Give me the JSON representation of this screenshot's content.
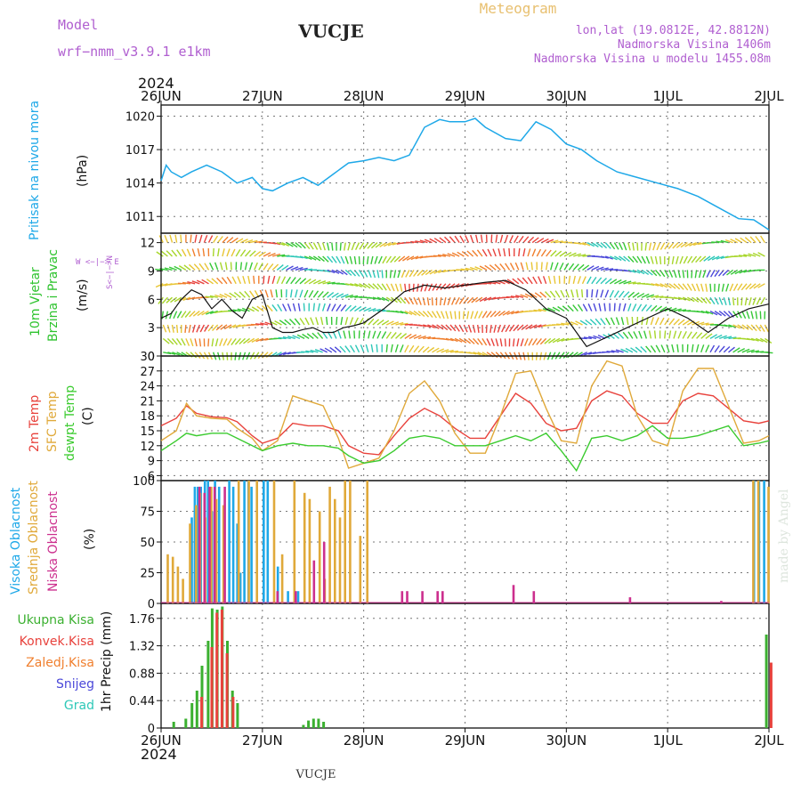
{
  "header": {
    "model_label": "Model",
    "model_name": "wrf−nmm_v3.9.1  e1km",
    "station": "VUCJE",
    "title": "Meteogram",
    "coords": "lon,lat (19.0812E, 42.8812N)",
    "elevation": "Nadmorska Visina 1406m",
    "model_elevation": "Nadmorska Visina u modelu 1455.08m",
    "footer_station": "VUCJE",
    "watermark": "made by Angel"
  },
  "time_axis": {
    "year": "2024",
    "ticks": [
      "26JUN",
      "27JUN",
      "28JUN",
      "29JUN",
      "30JUN",
      "1JUL",
      "2JUL"
    ]
  },
  "colors": {
    "pressure": "#1ea8e8",
    "wind_axis": "#2ec32e",
    "temp2m": "#e8423c",
    "sfc": "#e0a93a",
    "dew": "#3bcb2f",
    "cloud_high": "#1ea8e8",
    "cloud_mid": "#e0a93a",
    "cloud_low": "#cc2f8e",
    "precip_total": "#3bb030",
    "precip_conv": "#e8423c",
    "precip_frozen": "#f07f2e",
    "snow": "#4b48d9",
    "graupel": "#2ec8b8",
    "violet_text": "#b05fd0",
    "gold_text": "#e8c070"
  },
  "panel_labels": {
    "pressure": {
      "title": "Pritisak na nivou mora",
      "unit": "(hPa)"
    },
    "wind": {
      "title1": "10m Vjetar",
      "title2": "Brzina i Pravac",
      "unit": "(m/s)",
      "compass": "W <−|−> E",
      "compass_ns": "S<−|−>N"
    },
    "temp": {
      "t1": "2m Temp",
      "t2": "SFC Temp",
      "t3": "dewpt Temp",
      "unit": "(C)"
    },
    "cloud": {
      "c1": "Visoka Oblacnost",
      "c2": "Srednja Oblacnost",
      "c3": "Niska Oblacnost",
      "unit": "(%)"
    },
    "precip": {
      "p1": "Ukupna Kisa",
      "p2": "Konvek.Kisa",
      "p3": "Zaledj.Kisa",
      "p4": "Snijeg",
      "p5": "Grad",
      "unit": "1hr Precip (mm)"
    }
  },
  "chart_data": [
    {
      "type": "line",
      "panel": "pressure",
      "x_days": [
        0,
        0.05,
        0.1,
        0.2,
        0.3,
        0.45,
        0.6,
        0.75,
        0.9,
        1.0,
        1.1,
        1.25,
        1.4,
        1.55,
        1.7,
        1.85,
        2.0,
        2.15,
        2.3,
        2.45,
        2.6,
        2.75,
        2.85,
        3.0,
        3.1,
        3.2,
        3.4,
        3.55,
        3.7,
        3.85,
        4.0,
        4.15,
        4.3,
        4.5,
        4.7,
        4.9,
        5.1,
        5.3,
        5.5,
        5.7,
        5.85,
        6.0
      ],
      "values": [
        1014.2,
        1015.6,
        1015.0,
        1014.5,
        1015.0,
        1015.6,
        1015.0,
        1014.0,
        1014.5,
        1013.5,
        1013.3,
        1014.0,
        1014.5,
        1013.8,
        1014.8,
        1015.8,
        1016.0,
        1016.3,
        1016.0,
        1016.5,
        1019.0,
        1019.7,
        1019.5,
        1019.5,
        1019.8,
        1019.0,
        1018.0,
        1017.8,
        1019.5,
        1018.8,
        1017.5,
        1017.0,
        1016.0,
        1015.0,
        1014.5,
        1014.0,
        1013.5,
        1012.8,
        1011.8,
        1010.8,
        1010.7,
        1009.8
      ],
      "ylim": [
        1009.5,
        1021
      ],
      "yticks": [
        1011,
        1014,
        1017,
        1020
      ]
    },
    {
      "type": "line",
      "panel": "wind",
      "x_days": [
        0,
        0.1,
        0.2,
        0.3,
        0.4,
        0.5,
        0.6,
        0.7,
        0.8,
        0.9,
        1.0,
        1.1,
        1.2,
        1.3,
        1.4,
        1.5,
        1.6,
        1.7,
        1.8,
        1.9,
        2.0,
        2.2,
        2.4,
        2.6,
        2.8,
        3.0,
        3.2,
        3.4,
        3.6,
        3.8,
        4.0,
        4.2,
        4.4,
        4.6,
        4.8,
        5.0,
        5.2,
        5.4,
        5.6,
        5.8,
        6.0
      ],
      "values": [
        4,
        4.5,
        6,
        7,
        6.5,
        5,
        6,
        4.8,
        4,
        6,
        6.5,
        3,
        2.5,
        2.5,
        2.8,
        3,
        2.5,
        2.5,
        3,
        3.2,
        3.5,
        5,
        6.8,
        7.5,
        7.2,
        7.5,
        7.8,
        8,
        7,
        5,
        4,
        1,
        2,
        3,
        4,
        5,
        4,
        2.5,
        4,
        5,
        5.5
      ],
      "ylim": [
        0,
        13
      ],
      "yticks": [
        0,
        3,
        6,
        9,
        12
      ]
    },
    {
      "type": "line",
      "panel": "temperature",
      "x_days": [
        0,
        0.15,
        0.25,
        0.35,
        0.5,
        0.65,
        0.75,
        0.9,
        1.0,
        1.15,
        1.3,
        1.45,
        1.6,
        1.75,
        1.85,
        2.0,
        2.15,
        2.3,
        2.45,
        2.6,
        2.75,
        2.9,
        3.05,
        3.2,
        3.35,
        3.5,
        3.65,
        3.8,
        3.95,
        4.1,
        4.25,
        4.4,
        4.55,
        4.7,
        4.85,
        5.0,
        5.15,
        5.3,
        5.45,
        5.6,
        5.75,
        5.9,
        6.0
      ],
      "series": [
        {
          "name": "2m Temp",
          "values": [
            16,
            17.5,
            20,
            18.5,
            17.8,
            17.6,
            16.8,
            14,
            12.5,
            13.5,
            16.5,
            16,
            16,
            15,
            12,
            10.5,
            10.2,
            14,
            17.5,
            19.5,
            18,
            15.5,
            13.5,
            13.5,
            18,
            22.5,
            20.5,
            16.5,
            15,
            15.5,
            21,
            23,
            22,
            18.5,
            16.5,
            16.5,
            21,
            22.5,
            22,
            19.5,
            17,
            16.5,
            17
          ]
        },
        {
          "name": "SFC Temp",
          "values": [
            13,
            15,
            20.5,
            18,
            17.5,
            17.3,
            15.5,
            13.5,
            11,
            13,
            22,
            21,
            20,
            13.5,
            7.5,
            8.5,
            9.5,
            15,
            22.5,
            25,
            21,
            14.5,
            10.5,
            10.5,
            18,
            26.5,
            27,
            19.5,
            13,
            12.5,
            24,
            29,
            28,
            18,
            13,
            12,
            23,
            27.5,
            27.5,
            20,
            12.5,
            13,
            14
          ]
        },
        {
          "name": "dewpt Temp",
          "values": [
            11,
            13,
            14.5,
            14,
            14.5,
            14.5,
            13.5,
            12,
            11,
            12,
            12.5,
            12,
            12,
            11.5,
            10,
            8.5,
            9,
            11,
            13.5,
            14,
            13.5,
            12,
            12,
            12,
            13,
            14,
            13,
            14.5,
            11,
            7,
            13.5,
            14,
            13,
            14,
            16,
            13.5,
            13.5,
            14,
            15,
            16,
            12,
            12.5,
            13
          ]
        }
      ],
      "ylim": [
        5,
        30
      ],
      "yticks": [
        6,
        9,
        12,
        15,
        18,
        21,
        24,
        27,
        30
      ]
    },
    {
      "type": "bar",
      "panel": "cloud",
      "series": [
        {
          "name": "Visoka Oblacnost",
          "x_days": [
            0.3,
            0.33,
            0.36,
            0.39,
            0.43,
            0.46,
            0.5,
            0.53,
            0.57,
            0.67,
            0.71,
            0.75,
            0.78,
            0.82,
            0.86,
            0.89,
            1.01,
            1.05,
            1.15,
            1.25,
            1.35,
            5.85,
            5.9,
            5.95
          ],
          "values": [
            70,
            95,
            95,
            95,
            100,
            100,
            75,
            100,
            95,
            100,
            95,
            65,
            25,
            100,
            100,
            95,
            100,
            100,
            30,
            10,
            10,
            100,
            100,
            100
          ]
        },
        {
          "name": "Srednja Oblacnost",
          "x_days": [
            0.05,
            0.1,
            0.15,
            0.2,
            0.27,
            0.33,
            0.37,
            0.42,
            0.48,
            0.53,
            0.6,
            0.75,
            0.85,
            0.93,
            1.1,
            1.18,
            1.3,
            1.4,
            1.45,
            1.55,
            1.6,
            1.65,
            1.7,
            1.75,
            1.8,
            1.85,
            1.95,
            2.02,
            5.83,
            5.88,
            5.98
          ],
          "values": [
            40,
            38,
            30,
            20,
            65,
            80,
            90,
            70,
            95,
            85,
            80,
            100,
            100,
            100,
            100,
            40,
            100,
            90,
            85,
            75,
            20,
            95,
            85,
            70,
            100,
            100,
            55,
            100,
            100,
            100,
            95
          ]
        },
        {
          "name": "Niska Oblacnost",
          "x_days": [
            0.35,
            0.4,
            0.45,
            0.5,
            0.6,
            1.12,
            1.3,
            1.48,
            1.58,
            2.35,
            2.4,
            2.55,
            2.7,
            2.75,
            3.45,
            3.65,
            4.6,
            5.5
          ],
          "values": [
            95,
            90,
            95,
            95,
            95,
            10,
            10,
            35,
            50,
            10,
            10,
            10,
            10,
            10,
            15,
            10,
            5,
            2
          ]
        }
      ],
      "ylim": [
        0,
        100
      ],
      "yticks": [
        0,
        25,
        50,
        75,
        100
      ]
    },
    {
      "type": "bar",
      "panel": "precip",
      "series": [
        {
          "name": "Ukupna Kisa",
          "x_days": [
            0.12,
            0.24,
            0.3,
            0.35,
            0.4,
            0.46,
            0.5,
            0.55,
            0.6,
            0.65,
            0.7,
            0.75,
            1.4,
            1.45,
            1.5,
            1.55,
            1.6,
            5.97
          ],
          "values": [
            0.1,
            0.15,
            0.4,
            0.6,
            1.0,
            1.4,
            1.92,
            1.9,
            1.95,
            1.4,
            0.6,
            0.4,
            0.05,
            0.12,
            0.15,
            0.15,
            0.1,
            1.5
          ]
        },
        {
          "name": "Konvek.Kisa",
          "x_days": [
            0.37,
            0.47,
            0.52,
            0.57,
            0.62,
            0.68,
            5.99
          ],
          "values": [
            0.5,
            1.3,
            1.85,
            1.9,
            1.2,
            0.5,
            1.05
          ]
        }
      ],
      "ylim": [
        0,
        2.0
      ],
      "yticks": [
        0,
        0.44,
        0.88,
        1.32,
        1.76
      ]
    }
  ]
}
